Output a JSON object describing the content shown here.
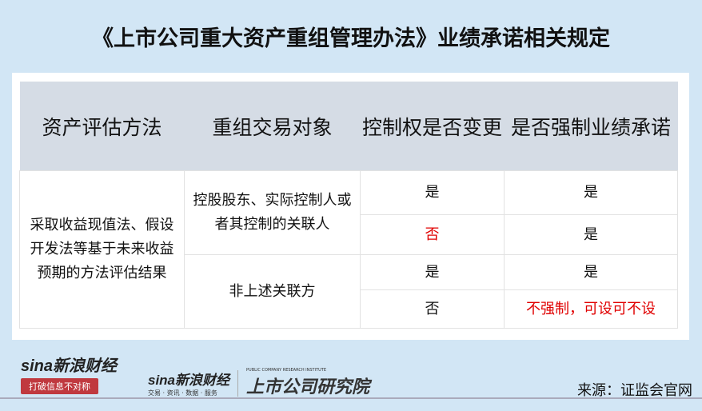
{
  "title": "《上市公司重大资产重组管理办法》业绩承诺相关规定",
  "table": {
    "headers": [
      "资产评估方法",
      "重组交易对象",
      "控制权是否变更",
      "是否强制业绩承诺"
    ],
    "method": "采取收益现值法、假设开发法等基于未来收益预期的方法评估结果",
    "groups": [
      {
        "party": "控股股东、实际控制人或者其控制的关联人",
        "rows": [
          {
            "control": "是",
            "mandatory": "是"
          },
          {
            "control": "否",
            "mandatory": "是"
          }
        ]
      },
      {
        "party": "非上述关联方",
        "rows": [
          {
            "control": "是",
            "mandatory": "是"
          },
          {
            "control": "否",
            "mandatory": "不强制，可设可不设"
          }
        ]
      }
    ]
  },
  "footer": {
    "logo1_brand": "sina新浪财经",
    "logo1_slogan": "打破信息不对称",
    "logo2_brand": "sina新浪财经",
    "logo2_sub": "交易 · 资讯 · 数据 · 服务",
    "logo3": "上市公司研究院",
    "logo3_en": "PUBLIC COMPANY RESEARCH INSTITUTE",
    "source": "来源：证监会官网"
  },
  "colors": {
    "background": "#d2e6f5",
    "header": "#d5dce5",
    "highlight": "#e00000"
  }
}
